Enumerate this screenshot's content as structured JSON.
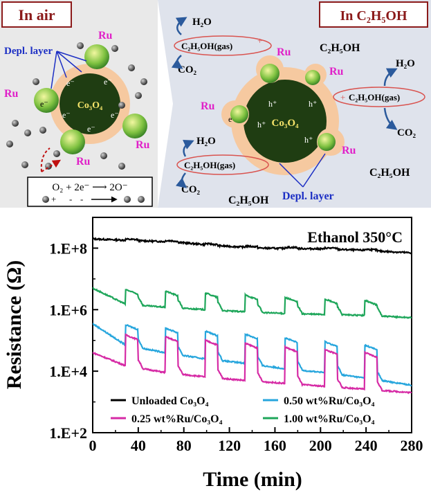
{
  "schematic": {
    "air_panel": {
      "title": "In air",
      "depl_label": "Depl. layer",
      "ru_label": "Ru",
      "core_label": "Co₃O₄",
      "electron": "e⁻",
      "reaction_line1": "O₂ + 2e⁻ ⟶ 2O⁻",
      "colors": {
        "bg": "#e9e9e9",
        "core": "#1f3d12",
        "shell": "#f6c9a0",
        "ru": "#7fc241",
        "border": "#8b1a1a"
      }
    },
    "ethanol_panel": {
      "title": "In C₂H₅OH",
      "depl_label": "Depl. layer",
      "ru_label": "Ru",
      "core_label": "Co₃O₄",
      "hole": "h⁺",
      "electron": "e",
      "h2o": "H₂O",
      "co2": "CO₂",
      "ethanol": "C₂H₅OH",
      "ethanol_gas": "C₂H₅OH(gas)",
      "plus": "+",
      "minus": "-",
      "colors": {
        "bg": "#dfe3ec",
        "border": "#8b1a1a",
        "oval": "#d9534f",
        "arrow": "#2b5a9c"
      }
    }
  },
  "chart_data": {
    "type": "line",
    "annotation": "Ethanol 350°C",
    "xlabel": "Time (min)",
    "ylabel": "Resistance (Ω)",
    "xlim": [
      0,
      280
    ],
    "ylim_log10": [
      2,
      9
    ],
    "x_ticks": [
      0,
      40,
      80,
      120,
      160,
      200,
      240,
      280
    ],
    "y_ticks": [
      "1.E+2",
      "1.E+4",
      "1.E+6",
      "1.E+8"
    ],
    "y_tick_exponents": [
      2,
      4,
      6,
      8
    ],
    "pulse_starts": [
      29,
      64,
      99,
      134,
      169,
      204,
      239
    ],
    "pulse_length": 11,
    "legend_position": "lower-left-inside",
    "series": [
      {
        "name": "Unloaded Co₃O₄",
        "color": "#000000",
        "points": [
          [
            0,
            200000000.0
          ],
          [
            30,
            180000000.0
          ],
          [
            70,
            160000000.0
          ],
          [
            110,
            120000000.0
          ],
          [
            150,
            100000000.0
          ],
          [
            200,
            95000000.0
          ],
          [
            240,
            85000000.0
          ],
          [
            280,
            70000000.0
          ]
        ],
        "pulse_amp": 0.08
      },
      {
        "name": "0.25 wt%Ru/Co₃O₄",
        "color": "#d62aa5",
        "points": [
          [
            0,
            40000.0
          ],
          [
            29,
            15000.0
          ],
          [
            64,
            9000.0
          ],
          [
            99,
            6500.0
          ],
          [
            134,
            5000.0
          ],
          [
            169,
            4000.0
          ],
          [
            204,
            3200.0
          ],
          [
            239,
            2600.0
          ],
          [
            280,
            2000.0
          ]
        ],
        "pulse_peak": [
          150000.0,
          130000.0,
          100000.0,
          80000.0,
          60000.0,
          50000.0,
          40000.0
        ]
      },
      {
        "name": "0.50 wt%Ru/Co₃O₄",
        "color": "#27a6dd",
        "points": [
          [
            0,
            350000.0
          ],
          [
            29,
            70000.0
          ],
          [
            64,
            40000.0
          ],
          [
            99,
            25000.0
          ],
          [
            134,
            18000.0
          ],
          [
            169,
            12000.0
          ],
          [
            204,
            9000.0
          ],
          [
            239,
            6000.0
          ],
          [
            280,
            3500.0
          ]
        ],
        "pulse_peak": [
          320000.0,
          250000.0,
          200000.0,
          160000.0,
          120000.0,
          90000.0,
          70000.0
        ]
      },
      {
        "name": "1.00 wt%Ru/Co₃O₄",
        "color": "#1ea65a",
        "points": [
          [
            0,
            5000000.0
          ],
          [
            29,
            1500000.0
          ],
          [
            64,
            1200000.0
          ],
          [
            99,
            1000000.0
          ],
          [
            134,
            850000.0
          ],
          [
            169,
            750000.0
          ],
          [
            204,
            700000.0
          ],
          [
            239,
            650000.0
          ],
          [
            280,
            550000.0
          ]
        ],
        "pulse_peak": [
          4500000.0,
          4000000.0,
          3500000.0,
          3000000.0,
          2500000.0,
          2200000.0,
          2000000.0
        ]
      }
    ]
  }
}
